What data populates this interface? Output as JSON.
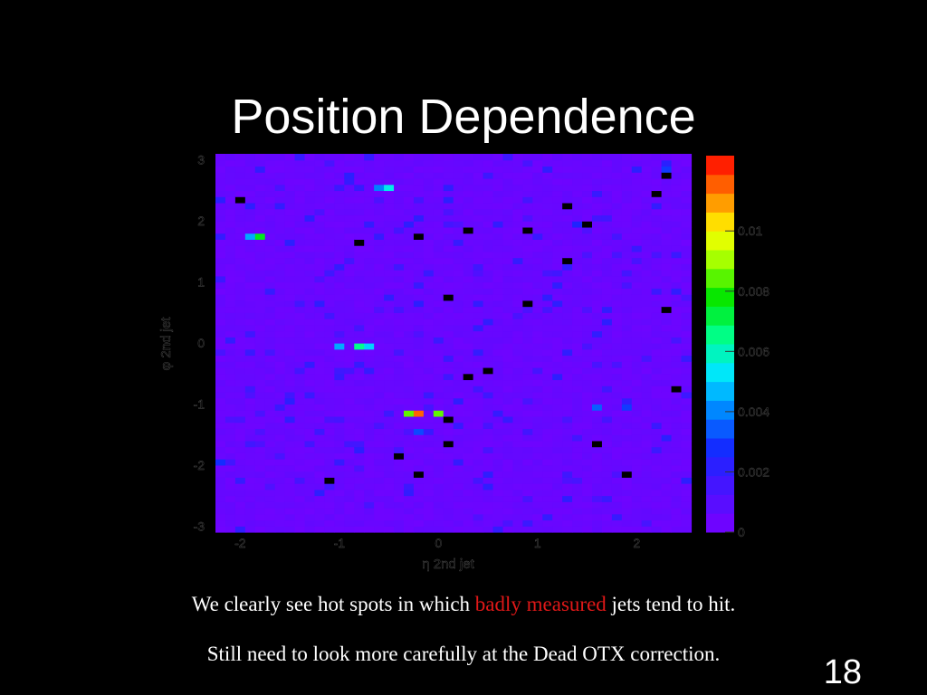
{
  "slide": {
    "title": "Position Dependence",
    "caption1_pre": "We clearly see hot spots in which ",
    "caption1_highlight": "badly measured",
    "caption1_post": " jets tend to hit.",
    "caption2": "Still need to look more carefully at the Dead OTX correction.",
    "page_number": "18",
    "highlight_color": "#e01818",
    "background_color": "#000000"
  },
  "chart_data": {
    "type": "heatmap",
    "xlabel": "η 2nd jet",
    "ylabel": "φ 2nd jet",
    "xlim": [
      -2.25,
      2.5
    ],
    "ylim": [
      -3.1,
      3.1
    ],
    "x_ticks": [
      "-2",
      "-1",
      "0",
      "1",
      "2"
    ],
    "x_tick_values": [
      -2,
      -1,
      0,
      1,
      2
    ],
    "y_ticks": [
      "3",
      "2",
      "1",
      "0",
      "-1",
      "-2",
      "-3"
    ],
    "y_tick_values": [
      3,
      2,
      1,
      0,
      -1,
      -2,
      -3
    ],
    "colorbar_ticks": [
      "0.01",
      "0.008",
      "0.006",
      "0.004",
      "0.002",
      "0"
    ],
    "colorbar_tick_values": [
      0.01,
      0.008,
      0.006,
      0.004,
      0.002,
      0
    ],
    "zlim": [
      0,
      0.0125
    ],
    "background_value": 0.0004,
    "grid": false,
    "hot_spots": [
      {
        "x": -0.2,
        "y": -1.1,
        "value": 0.0115
      },
      {
        "x": -0.35,
        "y": -1.1,
        "value": 0.0085
      },
      {
        "x": -0.05,
        "y": -1.1,
        "value": 0.0085
      },
      {
        "x": -0.8,
        "y": 0.0,
        "value": 0.0065
      },
      {
        "x": -1.0,
        "y": 0.0,
        "value": 0.0045
      },
      {
        "x": -0.7,
        "y": 0.0,
        "value": 0.005
      },
      {
        "x": -0.55,
        "y": 2.6,
        "value": 0.0055
      },
      {
        "x": -0.65,
        "y": 2.6,
        "value": 0.004
      },
      {
        "x": -1.85,
        "y": 1.8,
        "value": 0.0075
      },
      {
        "x": -1.95,
        "y": 1.8,
        "value": 0.0045
      },
      {
        "x": 2.25,
        "y": 2.85,
        "value": 0.003
      },
      {
        "x": 2.25,
        "y": 2.95,
        "value": 0.0022
      },
      {
        "x": 1.85,
        "y": -1.0,
        "value": 0.003
      },
      {
        "x": 1.65,
        "y": -1.0,
        "value": 0.0035
      },
      {
        "x": -0.2,
        "y": -1.4,
        "value": 0.0032
      },
      {
        "x": -2.2,
        "y": -1.9,
        "value": 0.0028
      },
      {
        "x": 1.45,
        "y": 2.05,
        "value": 0.0025
      }
    ]
  }
}
